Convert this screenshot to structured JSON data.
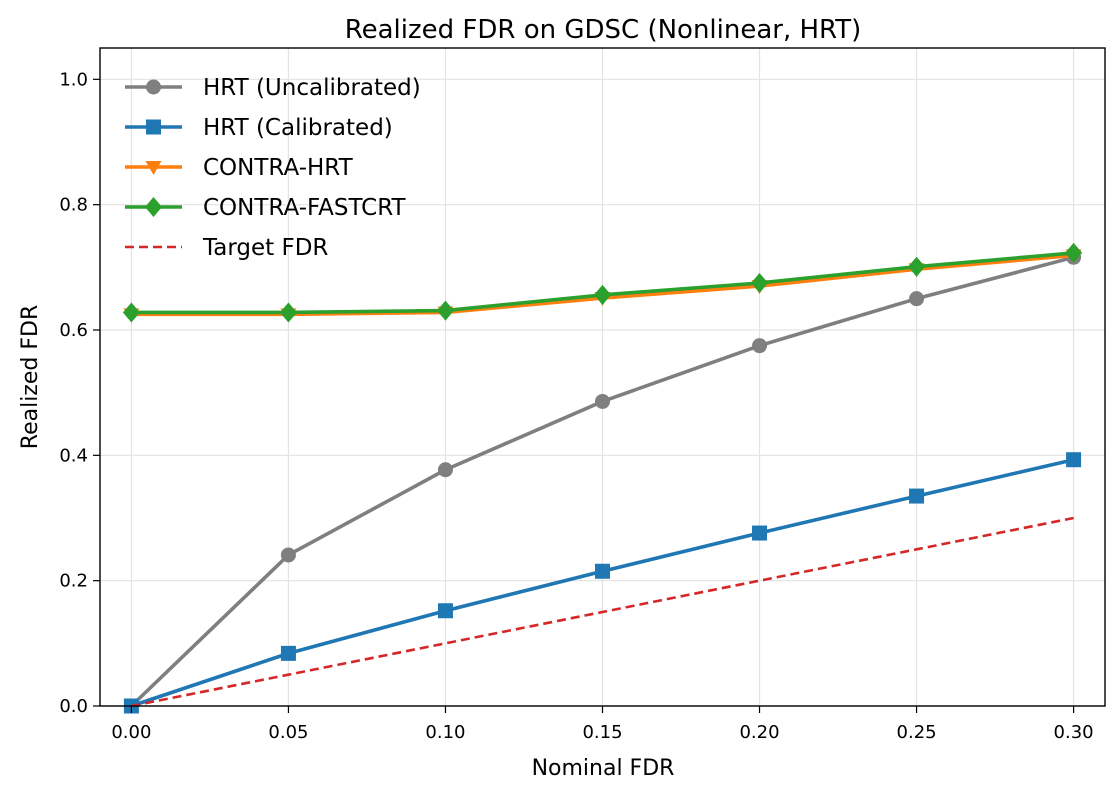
{
  "chart_data": {
    "type": "line",
    "title": "Realized FDR on GDSC (Nonlinear, HRT)",
    "xlabel": "Nominal FDR",
    "ylabel": "Realized FDR",
    "x": [
      0.0,
      0.05,
      0.1,
      0.15,
      0.2,
      0.25,
      0.3
    ],
    "xlim": [
      -0.01,
      0.31
    ],
    "ylim": [
      0.0,
      1.05
    ],
    "xticks": [
      "0.00",
      "0.05",
      "0.10",
      "0.15",
      "0.20",
      "0.25",
      "0.30"
    ],
    "yticks": [
      "0.0",
      "0.2",
      "0.4",
      "0.6",
      "0.8",
      "1.0"
    ],
    "grid": true,
    "legend_position": "top-left",
    "series": [
      {
        "name": "HRT (Uncalibrated)",
        "color": "#7f7f7f",
        "marker": "circle",
        "dashed": false,
        "values": [
          0.0,
          0.241,
          0.377,
          0.486,
          0.575,
          0.65,
          0.716
        ]
      },
      {
        "name": "HRT (Calibrated)",
        "color": "#1f77b4",
        "marker": "square",
        "dashed": false,
        "values": [
          0.0,
          0.084,
          0.152,
          0.215,
          0.276,
          0.335,
          0.393
        ]
      },
      {
        "name": "CONTRA-HRT",
        "color": "#ff7f0e",
        "marker": "triangle-down",
        "dashed": false,
        "values": [
          0.625,
          0.625,
          0.628,
          0.651,
          0.67,
          0.697,
          0.719
        ]
      },
      {
        "name": "CONTRA-FASTCRT",
        "color": "#2ca02c",
        "marker": "diamond",
        "dashed": false,
        "values": [
          0.628,
          0.628,
          0.631,
          0.656,
          0.675,
          0.701,
          0.723
        ]
      },
      {
        "name": "Target FDR",
        "color": "#d62728",
        "marker": "none",
        "dashed": true,
        "values": [
          0.0,
          0.05,
          0.1,
          0.15,
          0.2,
          0.25,
          0.3
        ]
      }
    ]
  }
}
